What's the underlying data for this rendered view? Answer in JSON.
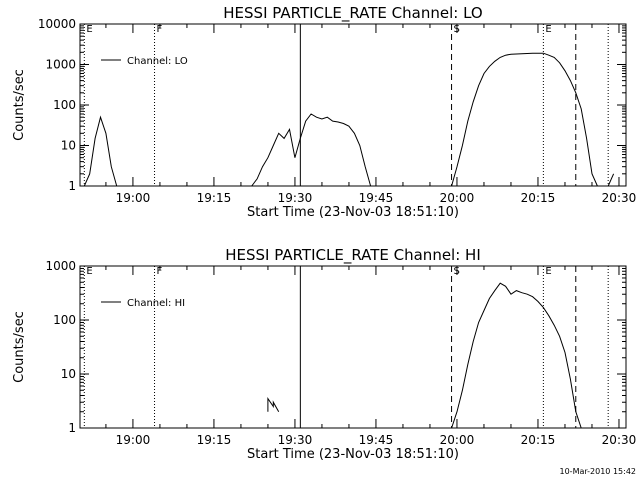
{
  "footer": {
    "timestamp": "10-Mar-2010 15:42"
  },
  "chart_data": [
    {
      "type": "line",
      "title": "HESSI PARTICLE_RATE Channel: LO",
      "xlabel": "Start Time (23-Nov-03 18:51:10)",
      "ylabel": "Counts/sec",
      "y_scale": "log",
      "ylim": [
        1,
        10000
      ],
      "y_ticks": [
        1,
        10,
        100,
        1000,
        10000
      ],
      "y_tick_labels": [
        "1",
        "10",
        "100",
        "1000",
        "10000"
      ],
      "x_ticks": [
        "19:00",
        "19:15",
        "19:30",
        "19:45",
        "20:00",
        "20:15",
        "20:30"
      ],
      "legend": "Channel: LO",
      "legend_placement": "top-left",
      "markers": [
        {
          "label": "E",
          "time": "18:51",
          "style": "dotted"
        },
        {
          "label": "F",
          "time": "19:04",
          "style": "dotted"
        },
        {
          "label": "",
          "time": "19:31",
          "style": "solid"
        },
        {
          "label": "S",
          "time": "19:59",
          "style": "dashed"
        },
        {
          "label": "E",
          "time": "20:16",
          "style": "dotted"
        },
        {
          "label": "",
          "time": "20:22",
          "style": "dashed"
        },
        {
          "label": "",
          "time": "20:28",
          "style": "dotted"
        }
      ],
      "series": [
        {
          "segments": [
            [
              [
                "18:51",
                1
              ],
              [
                "18:52",
                2
              ],
              [
                "18:53",
                15
              ],
              [
                "18:54",
                50
              ],
              [
                "18:55",
                20
              ],
              [
                "18:56",
                3
              ],
              [
                "18:57",
                1
              ]
            ],
            [
              [
                "19:22",
                1
              ],
              [
                "19:23",
                1.5
              ],
              [
                "19:24",
                3
              ],
              [
                "19:25",
                5
              ],
              [
                "19:26",
                10
              ],
              [
                "19:27",
                20
              ],
              [
                "19:28",
                15
              ],
              [
                "19:29",
                25
              ],
              [
                "19:30",
                5
              ],
              [
                "19:31",
                15
              ],
              [
                "19:32",
                40
              ],
              [
                "19:33",
                60
              ],
              [
                "19:34",
                50
              ],
              [
                "19:35",
                45
              ],
              [
                "19:36",
                50
              ],
              [
                "19:37",
                40
              ],
              [
                "19:38",
                38
              ],
              [
                "19:39",
                35
              ],
              [
                "19:40",
                30
              ],
              [
                "19:41",
                20
              ],
              [
                "19:42",
                10
              ],
              [
                "19:43",
                3
              ],
              [
                "19:44",
                1
              ]
            ],
            [
              [
                "19:59",
                1
              ],
              [
                "20:00",
                3
              ],
              [
                "20:01",
                10
              ],
              [
                "20:02",
                40
              ],
              [
                "20:03",
                120
              ],
              [
                "20:04",
                300
              ],
              [
                "20:05",
                600
              ],
              [
                "20:06",
                900
              ],
              [
                "20:07",
                1200
              ],
              [
                "20:08",
                1500
              ],
              [
                "20:09",
                1700
              ],
              [
                "20:10",
                1800
              ],
              [
                "20:12",
                1850
              ],
              [
                "20:14",
                1900
              ],
              [
                "20:16",
                1900
              ],
              [
                "20:17",
                1700
              ],
              [
                "20:18",
                1500
              ],
              [
                "20:19",
                1100
              ],
              [
                "20:20",
                700
              ],
              [
                "20:21",
                400
              ],
              [
                "20:22",
                200
              ],
              [
                "20:23",
                80
              ],
              [
                "20:24",
                15
              ],
              [
                "20:25",
                2
              ],
              [
                "20:26",
                1
              ]
            ],
            [
              [
                "20:28",
                1
              ],
              [
                "20:29",
                2
              ]
            ]
          ]
        }
      ]
    },
    {
      "type": "line",
      "title": "HESSI PARTICLE_RATE Channel: HI",
      "xlabel": "Start Time (23-Nov-03 18:51:10)",
      "ylabel": "Counts/sec",
      "y_scale": "log",
      "ylim": [
        1,
        1000
      ],
      "y_ticks": [
        1,
        10,
        100,
        1000
      ],
      "y_tick_labels": [
        "1",
        "10",
        "100",
        "1000"
      ],
      "x_ticks": [
        "19:00",
        "19:15",
        "19:30",
        "19:45",
        "20:00",
        "20:15",
        "20:30"
      ],
      "legend": "Channel: HI",
      "legend_placement": "top-left",
      "markers": [
        {
          "label": "E",
          "time": "18:51",
          "style": "dotted"
        },
        {
          "label": "F",
          "time": "19:04",
          "style": "dotted"
        },
        {
          "label": "",
          "time": "19:31",
          "style": "solid"
        },
        {
          "label": "S",
          "time": "19:59",
          "style": "dashed"
        },
        {
          "label": "E",
          "time": "20:16",
          "style": "dotted"
        },
        {
          "label": "",
          "time": "20:22",
          "style": "dashed"
        },
        {
          "label": "",
          "time": "20:28",
          "style": "dotted"
        }
      ],
      "series": [
        {
          "segments": [
            [
              [
                "19:25",
                2
              ],
              [
                "19:25",
                3.5
              ],
              [
                "19:26",
                2.5
              ],
              [
                "19:26",
                3
              ],
              [
                "19:27",
                2
              ]
            ],
            [
              [
                "19:59",
                1
              ],
              [
                "20:00",
                2
              ],
              [
                "20:01",
                5
              ],
              [
                "20:02",
                15
              ],
              [
                "20:03",
                40
              ],
              [
                "20:04",
                90
              ],
              [
                "20:05",
                150
              ],
              [
                "20:06",
                250
              ],
              [
                "20:07",
                350
              ],
              [
                "20:08",
                480
              ],
              [
                "20:09",
                420
              ],
              [
                "20:10",
                300
              ],
              [
                "20:11",
                350
              ],
              [
                "20:12",
                320
              ],
              [
                "20:13",
                300
              ],
              [
                "20:14",
                270
              ],
              [
                "20:15",
                220
              ],
              [
                "20:16",
                170
              ],
              [
                "20:17",
                120
              ],
              [
                "20:18",
                80
              ],
              [
                "20:19",
                50
              ],
              [
                "20:20",
                25
              ],
              [
                "20:21",
                8
              ],
              [
                "20:22",
                2
              ],
              [
                "20:23",
                1
              ]
            ]
          ]
        }
      ]
    }
  ]
}
